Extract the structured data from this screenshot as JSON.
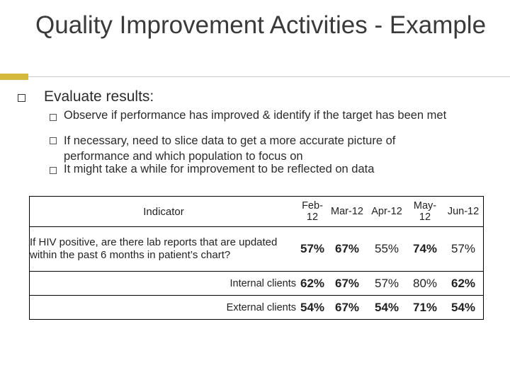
{
  "slide": {
    "title": "Quality Improvement Activities - Example",
    "main_bullet": "Evaluate results:",
    "sub_bullets": [
      "Observe if performance has improved & identify if the target has been met",
      "If necessary, need to slice data to get a more accurate picture of performance and which population to focus on",
      "It might take a while for improvement to be reflected on data"
    ]
  },
  "table": {
    "header": {
      "indicator": "Indicator",
      "months": [
        "Feb-12",
        "Mar-12",
        "Apr-12",
        "May-12",
        "Jun-12"
      ]
    },
    "rows": [
      {
        "label": "If HIV positive, are there lab reports that are updated within the past 6 months in patient’s chart?",
        "values": [
          "57%",
          "67%",
          "55%",
          "74%",
          "57%"
        ]
      },
      {
        "label": "Internal clients",
        "values": [
          "62%",
          "67%",
          "57%",
          "80%",
          "62%"
        ]
      },
      {
        "label": "External clients",
        "values": [
          "54%",
          "67%",
          "54%",
          "71%",
          "54%"
        ]
      }
    ]
  },
  "colors": {
    "accent": "#d4b93c",
    "title": "#3a3a3a"
  }
}
